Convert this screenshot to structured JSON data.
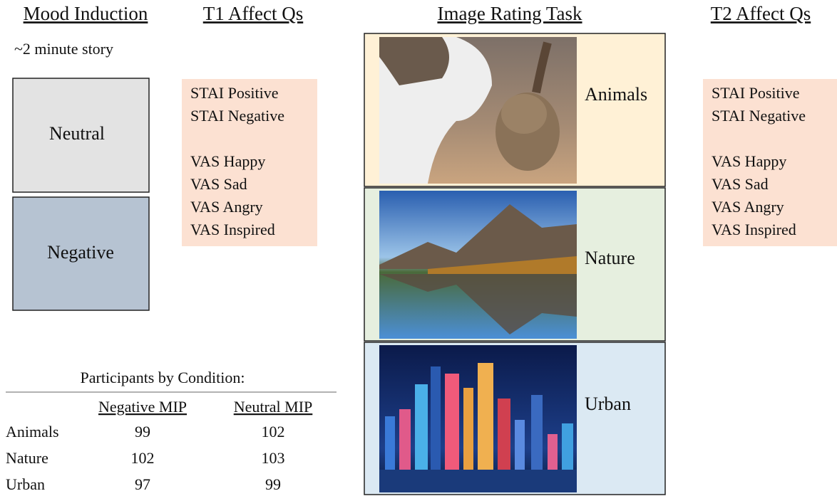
{
  "mood_induction": {
    "title": "Mood Induction",
    "note": "~2 minute story",
    "conditions": [
      "Neutral",
      "Negative"
    ]
  },
  "t1_affect": {
    "title": "T1 Affect Qs",
    "groups": [
      [
        "STAI Positive",
        "STAI Negative"
      ],
      [
        "VAS Happy",
        "VAS Sad",
        "VAS Angry",
        "VAS Inspired"
      ]
    ]
  },
  "image_rating": {
    "title": "Image Rating Task",
    "categories": [
      "Animals",
      "Nature",
      "Urban"
    ]
  },
  "t2_affect": {
    "title": "T2 Affect Qs",
    "groups": [
      [
        "STAI Positive",
        "STAI Negative"
      ],
      [
        "VAS Happy",
        "VAS Sad",
        "VAS Angry",
        "VAS Inspired"
      ]
    ]
  },
  "participants": {
    "title": "Participants by Condition:",
    "columns": [
      "Negative MIP",
      "Neutral MIP"
    ],
    "rows": [
      [
        "Animals",
        99,
        102
      ],
      [
        "Nature",
        102,
        103
      ],
      [
        "Urban",
        97,
        99
      ]
    ]
  }
}
